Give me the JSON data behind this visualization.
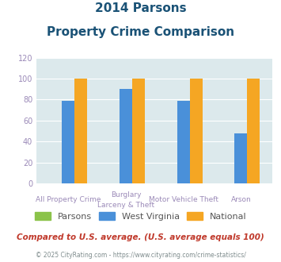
{
  "title_line1": "2014 Parsons",
  "title_line2": "Property Crime Comparison",
  "categories": [
    "All Property Crime",
    "Burglary\nLarceny & Theft",
    "Motor Vehicle Theft",
    "Arson"
  ],
  "series": {
    "Parsons": [
      0,
      0,
      0,
      0
    ],
    "West Virginia": [
      79,
      90,
      79,
      48
    ],
    "National": [
      100,
      100,
      100,
      100
    ]
  },
  "colors": {
    "Parsons": "#8bc34a",
    "West Virginia": "#4a90d9",
    "National": "#f5a623"
  },
  "ylim": [
    0,
    120
  ],
  "yticks": [
    0,
    20,
    40,
    60,
    80,
    100,
    120
  ],
  "footnote1": "Compared to U.S. average. (U.S. average equals 100)",
  "footnote2": "© 2025 CityRating.com - https://www.cityrating.com/crime-statistics/",
  "background_color": "#dce9ec",
  "title_color": "#1a5276",
  "footnote1_color": "#c0392b",
  "footnote2_color": "#7f8c8d",
  "tick_label_color": "#9b8ab8",
  "bar_width": 0.22
}
